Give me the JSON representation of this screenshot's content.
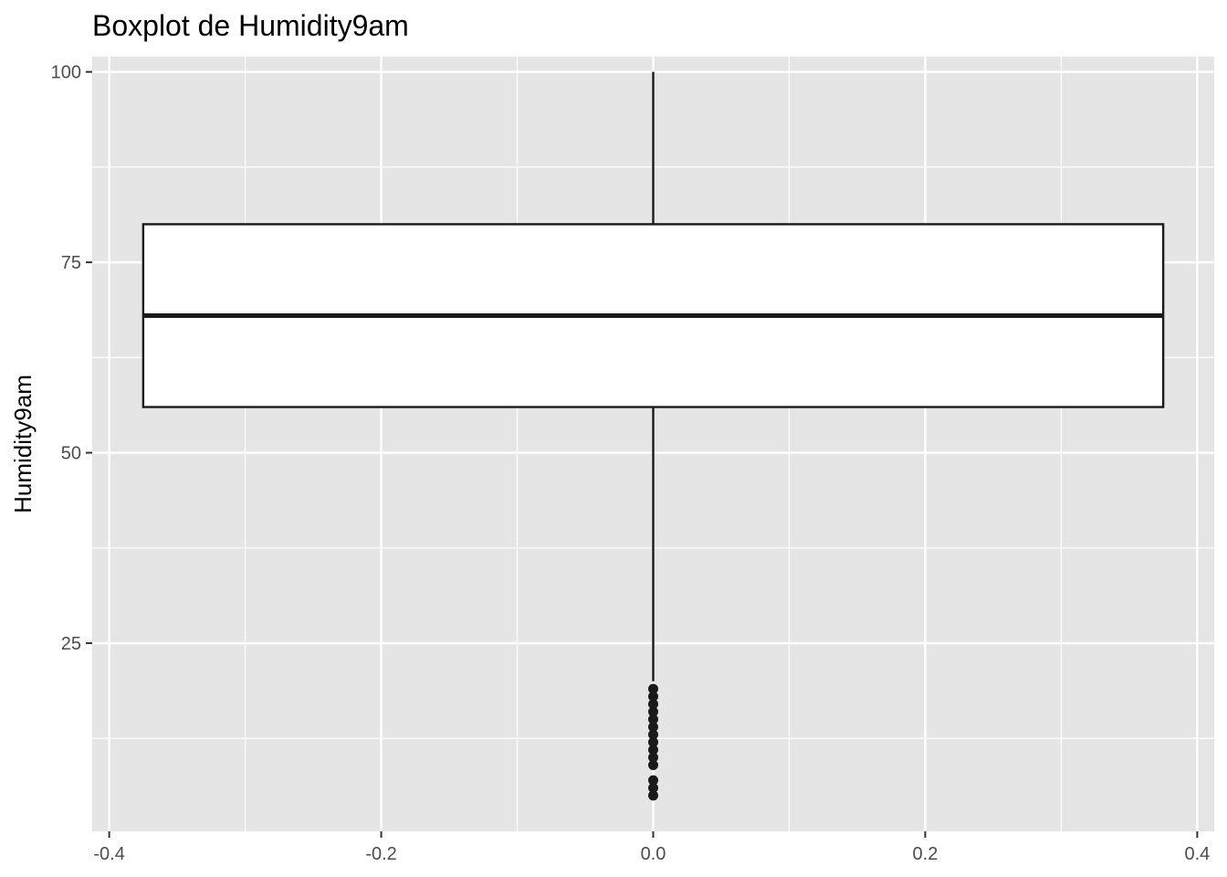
{
  "chart_data": {
    "type": "boxplot",
    "title": "Boxplot de Humidity9am",
    "xlabel": "",
    "ylabel": "Humidity9am",
    "xlim": [
      -0.4125,
      0.4125
    ],
    "ylim": [
      0.3,
      102
    ],
    "x_ticks": [
      -0.4,
      -0.2,
      0.0,
      0.2,
      0.4
    ],
    "x_tick_labels": [
      "-0.4",
      "-0.2",
      "0.0",
      "0.2",
      "0.4"
    ],
    "y_ticks": [
      25,
      50,
      75,
      100
    ],
    "y_tick_labels": [
      "25",
      "50",
      "75",
      "100"
    ],
    "grid": true,
    "box": {
      "x_center": 0.0,
      "x_min": -0.375,
      "x_max": 0.375,
      "whisker_low": 20,
      "q1": 56,
      "median": 68,
      "q3": 80,
      "whisker_high": 100
    },
    "outliers": [
      19,
      18,
      17,
      16,
      15,
      14,
      13,
      12,
      11,
      10,
      9,
      7,
      6,
      5
    ],
    "colors": {
      "panel": "#e5e5e5",
      "grid": "#ffffff",
      "box_fill": "#ffffff",
      "box_line": "#1a1a1a",
      "tick_text": "#4d4d4d"
    }
  }
}
